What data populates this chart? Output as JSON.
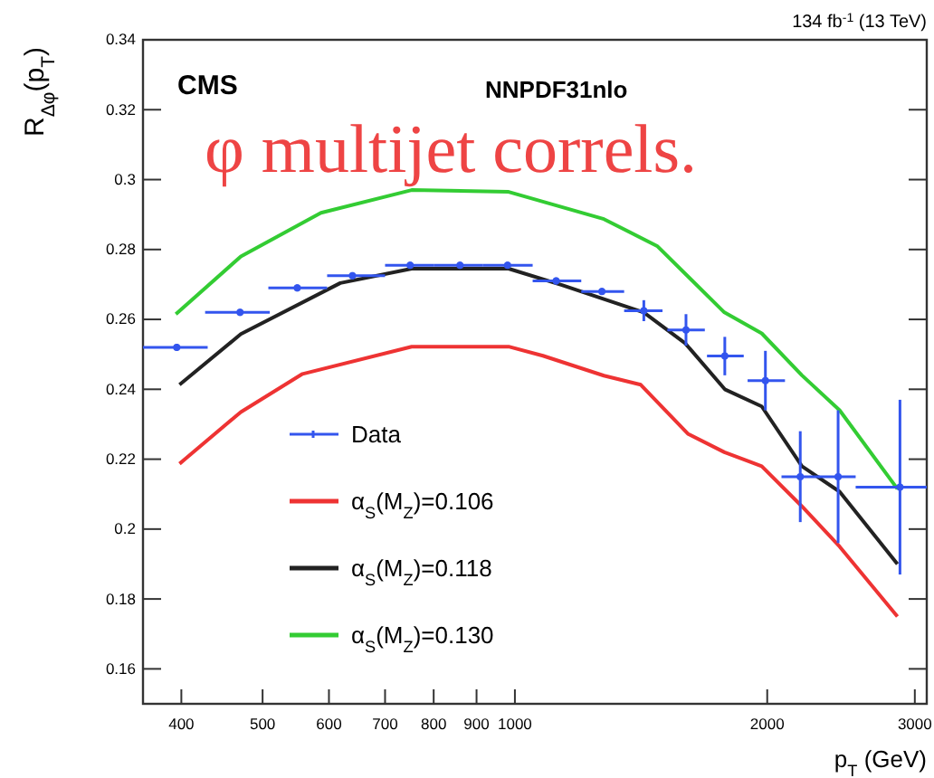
{
  "chart_data": {
    "type": "line",
    "xlabel": "p$_{T}$ (GeV)",
    "ylabel": "R$_{Δφ}$(p$_{T}$)",
    "annotations": [
      "134 fb$^{-1}$ (13 TeV)",
      "CMS",
      "NNPDF31nlo",
      "φ multijet correls."
    ],
    "log": "x",
    "xlim": [
      360,
      3100
    ],
    "ylim": [
      0.15,
      0.34
    ],
    "xticks": [
      400,
      500,
      600,
      700,
      800,
      900,
      1000,
      2000,
      3000
    ],
    "yticks": [
      0.16,
      0.18,
      0.2,
      0.22,
      0.24,
      0.26,
      0.28,
      0.3,
      0.32,
      0.34
    ],
    "legend": "bottom left",
    "grid": false,
    "line_style": "solid",
    "series": [
      {
        "name": "Data",
        "type": "scatter",
        "color": "#3355ee",
        "marker": "circle",
        "x": [
          395,
          470,
          550,
          640,
          750,
          860,
          980,
          1120,
          1270,
          1425,
          1600,
          1780,
          1990,
          2190,
          2430,
          2880
        ],
        "values": [
          0.252,
          0.262,
          0.269,
          0.2725,
          0.2755,
          0.2755,
          0.2755,
          0.271,
          0.268,
          0.2625,
          0.257,
          0.2495,
          0.2425,
          0.215,
          0.215,
          0.212
        ],
        "errors": [
          0.001,
          0.001,
          0.001,
          0.001,
          0.001,
          0.001,
          0.001,
          0.001,
          0.001,
          0.003,
          0.0045,
          0.0055,
          0.0085,
          0.013,
          0.019,
          0.025
        ],
        "xerrors": [
          [
            360,
            430
          ],
          [
            427,
            510
          ],
          [
            508,
            597
          ],
          [
            597,
            700
          ],
          [
            700,
            800
          ],
          [
            800,
            915
          ],
          [
            915,
            1050
          ],
          [
            1050,
            1200
          ],
          [
            1200,
            1350
          ],
          [
            1350,
            1500
          ],
          [
            1520,
            1685
          ],
          [
            1695,
            1875
          ],
          [
            1895,
            2100
          ],
          [
            2080,
            2310
          ],
          [
            2300,
            2550
          ],
          [
            2550,
            3100
          ]
        ]
      },
      {
        "name": "α$_{S}$(M$_{Z}$)=0.106",
        "color": "#ee3333",
        "x": [
          398,
          471,
          558,
          753,
          983,
          1080,
          1277,
          1413,
          1610,
          1778,
          1970,
          2200,
          2440,
          2860
        ],
        "values": [
          0.2187,
          0.2335,
          0.2444,
          0.2522,
          0.2522,
          0.2496,
          0.2439,
          0.2413,
          0.2272,
          0.222,
          0.218,
          0.2065,
          0.195,
          0.175
        ]
      },
      {
        "name": "α$_{S}$(M$_{Z}$)=0.118",
        "color": "#222222",
        "x": [
          398,
          471,
          619,
          753,
          983,
          1138,
          1425,
          1596,
          1780,
          1970,
          2200,
          2440,
          2860
        ],
        "values": [
          0.2413,
          0.2558,
          0.2704,
          0.2745,
          0.2745,
          0.2698,
          0.262,
          0.2532,
          0.24,
          0.2351,
          0.218,
          0.2107,
          0.19
        ]
      },
      {
        "name": "α$_{S}$(M$_{Z}$)=0.130",
        "color": "#33cc33",
        "x": [
          394,
          471,
          587,
          753,
          983,
          1277,
          1478,
          1778,
          1970,
          2200,
          2440,
          2860
        ],
        "values": [
          0.2615,
          0.278,
          0.2905,
          0.297,
          0.2965,
          0.2887,
          0.281,
          0.262,
          0.256,
          0.244,
          0.234,
          0.2115
        ]
      }
    ]
  }
}
